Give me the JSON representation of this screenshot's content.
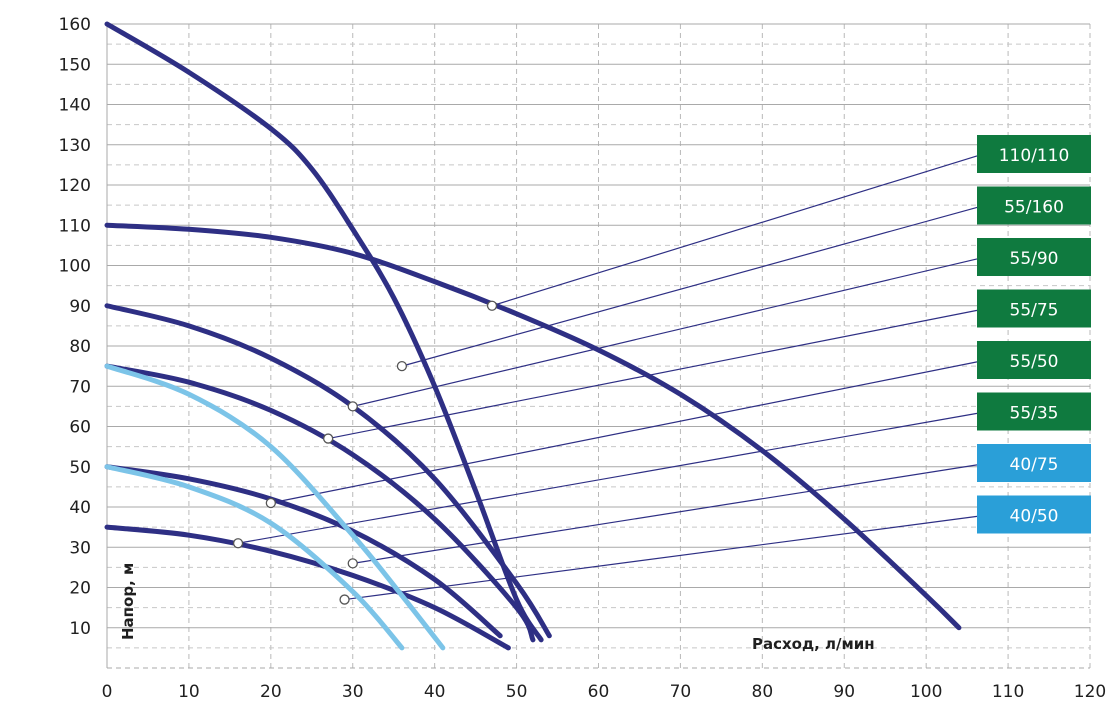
{
  "chart_data": {
    "type": "line",
    "xlabel": "Расход, л/мин",
    "ylabel": "Напор, м",
    "xlim": [
      0,
      120
    ],
    "ylim": [
      0,
      160
    ],
    "x_ticks": [
      "0",
      "10",
      "20",
      "30",
      "40",
      "50",
      "60",
      "70",
      "80",
      "90",
      "100",
      "110",
      "120"
    ],
    "y_ticks": [
      "10",
      "20",
      "30",
      "40",
      "50",
      "60",
      "70",
      "80",
      "90",
      "100",
      "110",
      "120",
      "130",
      "140",
      "150",
      "160"
    ],
    "grid": true,
    "legend_position": "right",
    "series": [
      {
        "name": "110/110",
        "color": "#2e2f84",
        "legend_bg": "#0f7a3f",
        "x": [
          0,
          10,
          20,
          30,
          40,
          50,
          60,
          70,
          80,
          90,
          100,
          104
        ],
        "y": [
          110,
          109,
          107,
          103,
          96,
          88,
          79,
          68,
          54,
          37,
          18,
          10
        ],
        "marker": [
          47,
          90
        ]
      },
      {
        "name": "55/160",
        "color": "#2e2f84",
        "legend_bg": "#0f7a3f",
        "x": [
          0,
          10,
          20,
          25,
          30,
          35,
          40,
          45,
          50,
          53
        ],
        "y": [
          160,
          148,
          134,
          124,
          109,
          92,
          70,
          44,
          17,
          7
        ],
        "marker": [
          36,
          75
        ]
      },
      {
        "name": "55/90",
        "color": "#2e2f84",
        "legend_bg": "#0f7a3f",
        "x": [
          0,
          10,
          20,
          30,
          40,
          50,
          54
        ],
        "y": [
          90,
          85,
          77,
          65,
          47,
          21,
          8
        ],
        "marker": [
          30,
          65
        ]
      },
      {
        "name": "55/75",
        "color": "#2e2f84",
        "legend_bg": "#0f7a3f",
        "x": [
          0,
          10,
          20,
          30,
          40,
          50,
          52
        ],
        "y": [
          75,
          71,
          64,
          53,
          37,
          15,
          7
        ],
        "marker": [
          27,
          57
        ]
      },
      {
        "name": "55/50",
        "color": "#2e2f84",
        "legend_bg": "#0f7a3f",
        "x": [
          0,
          10,
          20,
          30,
          40,
          48
        ],
        "y": [
          50,
          47,
          42,
          34,
          22,
          8
        ],
        "marker": [
          20,
          41
        ]
      },
      {
        "name": "55/35",
        "color": "#2e2f84",
        "legend_bg": "#0f7a3f",
        "x": [
          0,
          10,
          20,
          30,
          40,
          49
        ],
        "y": [
          35,
          33,
          29,
          23,
          15,
          5
        ],
        "marker": [
          16,
          31
        ]
      },
      {
        "name": "40/75",
        "color": "#7cc4e8",
        "legend_bg": "#2a9fd8",
        "x": [
          0,
          10,
          20,
          30,
          36,
          41
        ],
        "y": [
          75,
          68,
          55,
          33,
          18,
          5
        ],
        "marker": [
          30,
          26
        ]
      },
      {
        "name": "40/50",
        "color": "#7cc4e8",
        "legend_bg": "#2a9fd8",
        "x": [
          0,
          10,
          20,
          30,
          36
        ],
        "y": [
          50,
          45,
          36,
          19,
          5
        ],
        "marker": [
          29,
          17
        ]
      }
    ]
  }
}
